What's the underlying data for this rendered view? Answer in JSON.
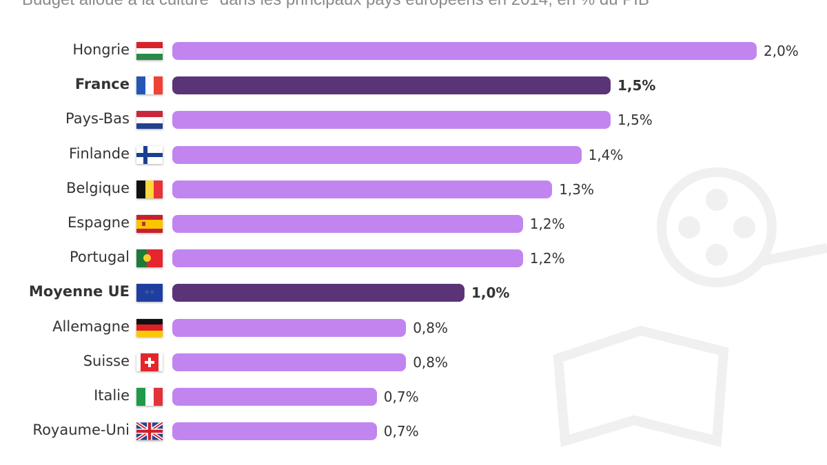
{
  "chart_data": {
    "type": "bar",
    "orientation": "horizontal",
    "title": "Budget alloué à la culture* dans les principaux pays européens en 2014, en % du PIB",
    "xlim": [
      0,
      2.0
    ],
    "grid": false,
    "categories": [
      "Hongrie",
      "France",
      "Pays-Bas",
      "Finlande",
      "Belgique",
      "Espagne",
      "Portugal",
      "Moyenne UE",
      "Allemagne",
      "Suisse",
      "Italie",
      "Royaume-Uni"
    ],
    "values": [
      2.0,
      1.5,
      1.5,
      1.4,
      1.3,
      1.2,
      1.2,
      1.0,
      0.8,
      0.8,
      0.7,
      0.7
    ],
    "value_labels": [
      "2,0%",
      "1,5%",
      "1,5%",
      "1,4%",
      "1,3%",
      "1,2%",
      "1,2%",
      "1,0%",
      "0,8%",
      "0,8%",
      "0,7%",
      "0,7%"
    ],
    "highlighted": [
      "France",
      "Moyenne UE"
    ],
    "flags": [
      "hungary",
      "france",
      "netherlands",
      "finland",
      "belgium",
      "spain",
      "portugal",
      "eu",
      "germany",
      "switzerland",
      "italy",
      "uk"
    ],
    "colors": {
      "bar": "#c285ef",
      "highlight": "#5b3377"
    }
  }
}
